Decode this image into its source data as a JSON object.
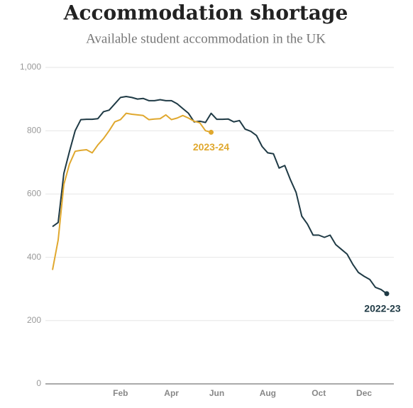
{
  "chart_data": {
    "type": "line",
    "title": "Accommodation shortage",
    "subtitle": "Available student accommodation in the UK",
    "categories": [
      null,
      null,
      null,
      null,
      null,
      null,
      null,
      null,
      null,
      null,
      null,
      null,
      "Feb",
      null,
      null,
      null,
      null,
      null,
      null,
      null,
      null,
      "Apr",
      null,
      null,
      null,
      null,
      null,
      null,
      null,
      "Jun",
      null,
      null,
      null,
      null,
      null,
      null,
      null,
      null,
      "Aug",
      null,
      null,
      null,
      null,
      null,
      null,
      null,
      null,
      "Oct",
      null,
      null,
      null,
      null,
      null,
      null,
      null,
      "Dec",
      null,
      null,
      null,
      null
    ],
    "series": [
      {
        "name": "2022-23",
        "color": "#1f3a45",
        "values": [
          497,
          510,
          665,
          735,
          800,
          835,
          836,
          836,
          838,
          860,
          865,
          885,
          905,
          908,
          905,
          900,
          902,
          895,
          895,
          898,
          895,
          895,
          885,
          870,
          855,
          828,
          830,
          826,
          855,
          836,
          836,
          837,
          828,
          832,
          805,
          798,
          785,
          750,
          730,
          727,
          682,
          690,
          645,
          605,
          530,
          505,
          470,
          470,
          463,
          470,
          440,
          425,
          410,
          378,
          352,
          340,
          330,
          305,
          298,
          285
        ]
      },
      {
        "name": "2023-24",
        "color": "#e0a82e",
        "values": [
          360,
          455,
          630,
          695,
          735,
          738,
          740,
          730,
          755,
          775,
          800,
          828,
          835,
          855,
          852,
          850,
          848,
          835,
          837,
          838,
          850,
          835,
          840,
          848,
          840,
          830,
          825,
          800,
          795,
          null,
          null,
          null,
          null,
          null,
          null,
          null,
          null,
          null,
          null,
          null,
          null,
          null,
          null,
          null,
          null,
          null,
          null,
          null,
          null,
          null,
          null,
          null,
          null,
          null,
          null,
          null,
          null,
          null,
          null,
          null
        ]
      }
    ],
    "ylim": [
      0,
      1000
    ],
    "yticks": [
      0,
      200,
      400,
      600,
      800,
      {
        "value": 1000,
        "label": "1,000"
      }
    ],
    "grid": true
  }
}
